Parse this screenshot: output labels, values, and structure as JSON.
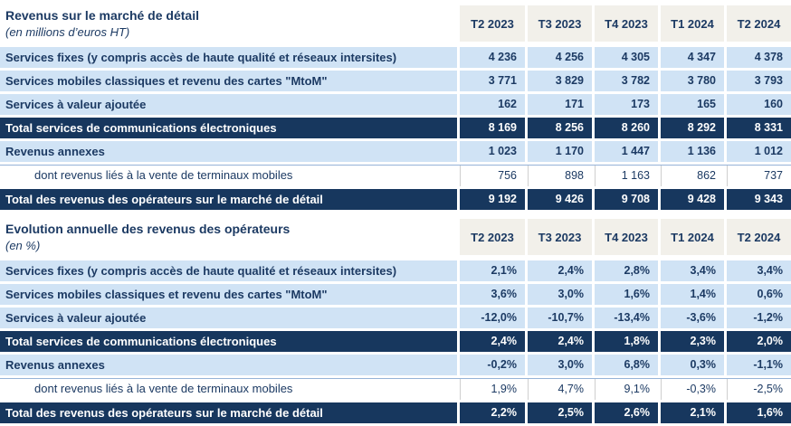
{
  "colors": {
    "navy_fill": "#17375e",
    "light_blue_fill": "#d0e3f5",
    "header_fill": "#f2f0ea",
    "text_navy": "#1c3a63",
    "text_white": "#ffffff"
  },
  "tables": [
    {
      "title": "Revenus sur le marché de détail",
      "subtitle": "(en millions d’euros HT)",
      "columns": [
        "T2 2023",
        "T3 2023",
        "T4 2023",
        "T1 2024",
        "T2 2024"
      ],
      "rows": [
        {
          "label": "Services fixes (y compris accès de haute qualité et réseaux intersites)",
          "style": "blue",
          "values": [
            "4 236",
            "4 256",
            "4 305",
            "4 347",
            "4 378"
          ]
        },
        {
          "label": "Services mobiles classiques et revenu des cartes \"MtoM\"",
          "style": "blue",
          "values": [
            "3 771",
            "3 829",
            "3 782",
            "3 780",
            "3 793"
          ]
        },
        {
          "label": "Services à valeur ajoutée",
          "style": "blue",
          "values": [
            "162",
            "171",
            "173",
            "165",
            "160"
          ]
        },
        {
          "label": "Total services de communications électroniques",
          "style": "total",
          "values": [
            "8 169",
            "8 256",
            "8 260",
            "8 292",
            "8 331"
          ]
        },
        {
          "label": "Revenus annexes",
          "style": "blue",
          "values": [
            "1 023",
            "1 170",
            "1 447",
            "1 136",
            "1 012"
          ]
        },
        {
          "label": "dont revenus liés à la vente de terminaux mobiles",
          "style": "sub",
          "values": [
            "756",
            "898",
            "1 163",
            "862",
            "737"
          ]
        },
        {
          "label": "Total des revenus des opérateurs sur le marché de détail",
          "style": "total",
          "values": [
            "9 192",
            "9 426",
            "9 708",
            "9 428",
            "9 343"
          ]
        }
      ]
    },
    {
      "title": "Evolution annuelle des revenus des opérateurs",
      "subtitle": "(en %)",
      "columns": [
        "T2 2023",
        "T3 2023",
        "T4 2023",
        "T1 2024",
        "T2 2024"
      ],
      "rows": [
        {
          "label": "Services fixes (y compris accès de haute qualité et réseaux intersites)",
          "style": "blue",
          "values": [
            "2,1%",
            "2,4%",
            "2,8%",
            "3,4%",
            "3,4%"
          ]
        },
        {
          "label": "Services mobiles classiques et revenu des cartes \"MtoM\"",
          "style": "blue",
          "values": [
            "3,6%",
            "3,0%",
            "1,6%",
            "1,4%",
            "0,6%"
          ]
        },
        {
          "label": "Services à valeur ajoutée",
          "style": "blue",
          "values": [
            "-12,0%",
            "-10,7%",
            "-13,4%",
            "-3,6%",
            "-1,2%"
          ]
        },
        {
          "label": "Total services de communications électroniques",
          "style": "total",
          "values": [
            "2,4%",
            "2,4%",
            "1,8%",
            "2,3%",
            "2,0%"
          ]
        },
        {
          "label": "Revenus annexes",
          "style": "blue",
          "values": [
            "-0,2%",
            "3,0%",
            "6,8%",
            "0,3%",
            "-1,1%"
          ]
        },
        {
          "label": "dont revenus liés à la vente de terminaux mobiles",
          "style": "sub",
          "values": [
            "1,9%",
            "4,7%",
            "9,1%",
            "-0,3%",
            "-2,5%"
          ]
        },
        {
          "label": "Total des revenus des opérateurs sur le marché de détail",
          "style": "total",
          "values": [
            "2,2%",
            "2,5%",
            "2,6%",
            "2,1%",
            "1,6%"
          ]
        }
      ]
    }
  ]
}
